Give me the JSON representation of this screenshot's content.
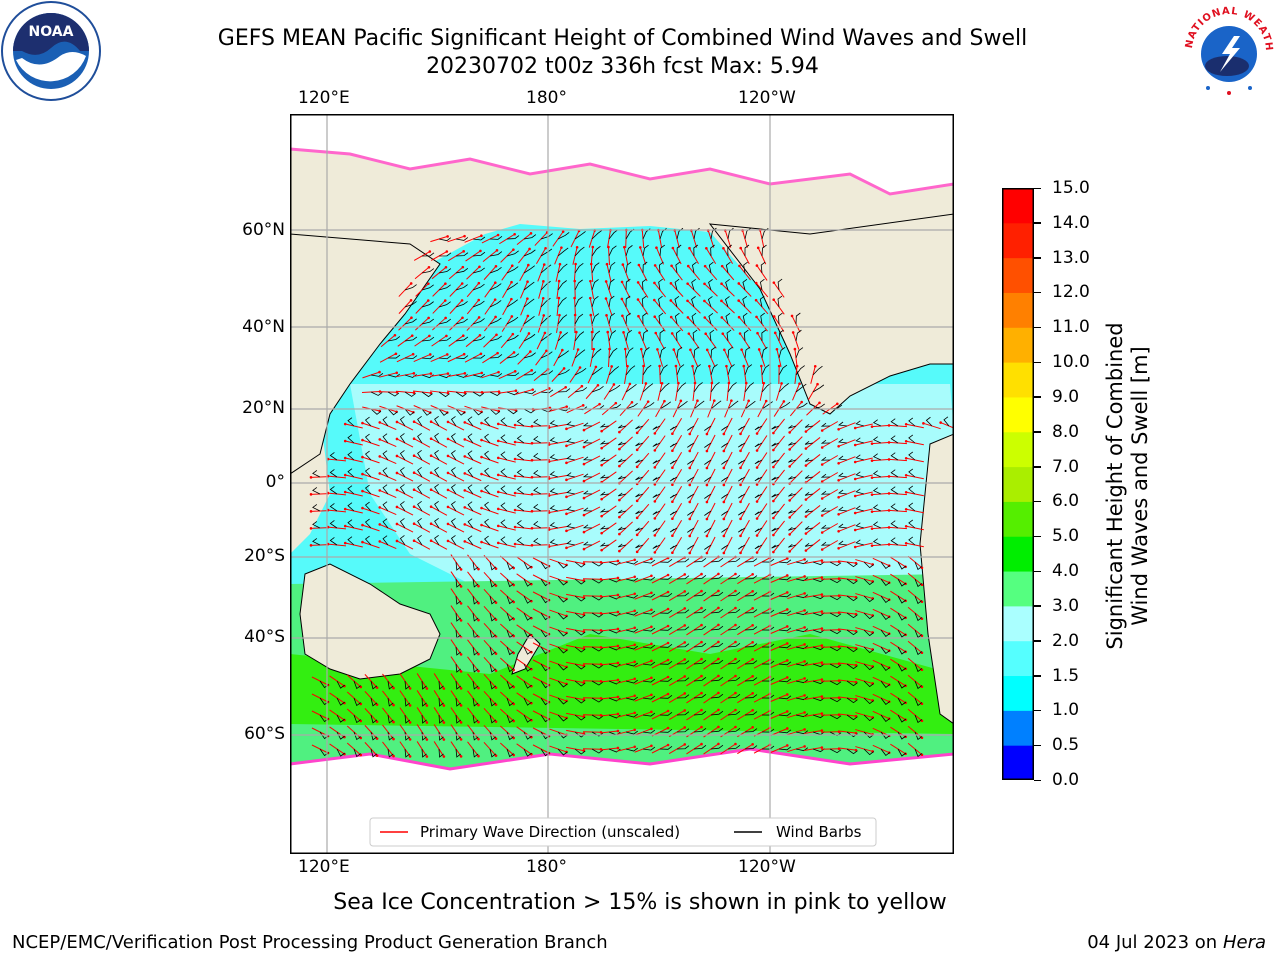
{
  "header": {
    "title_line1": "GEFS MEAN Pacific Significant Height of Combined Wind Waves and Swell",
    "title_line2": "20230702 t00z 336h fcst   Max: 5.94"
  },
  "logos": {
    "left": "noaa-logo",
    "left_text": "NOAA",
    "right": "national-weather-service-logo",
    "right_text": "NATIONAL WEATHER SERVICE"
  },
  "map": {
    "lon_labels": [
      "120°E",
      "180°",
      "120°W"
    ],
    "lat_labels": [
      "60°N",
      "40°N",
      "20°N",
      "0°",
      "20°S",
      "40°S",
      "60°S"
    ],
    "legend": {
      "wave_direction": "Primary Wave Direction (unscaled)",
      "wind_barbs": "Wind Barbs"
    },
    "colors": {
      "land": "#efebd9",
      "ocean_low": "#56fafa",
      "ocean_mid": "#a8fcfc",
      "ocean_high": "#50f080",
      "ocean_peak": "#33ee11",
      "wave_arrow": "#ff0000",
      "barb": "#000000"
    }
  },
  "colorbar": {
    "label_line1": "Significant Height of Combined",
    "label_line2": "Wind Waves and Swell [m]",
    "ticks": [
      "0.0",
      "0.5",
      "1.0",
      "1.5",
      "2.0",
      "3.0",
      "4.0",
      "5.0",
      "6.0",
      "7.0",
      "8.0",
      "9.0",
      "10.0",
      "11.0",
      "12.0",
      "13.0",
      "14.0",
      "15.0"
    ],
    "colors": [
      "#0000ff",
      "#0080ff",
      "#00ffff",
      "#55ffff",
      "#aaffff",
      "#55ff80",
      "#00ee00",
      "#55ee00",
      "#aaee00",
      "#ccff00",
      "#ffff00",
      "#ffe000",
      "#ffb000",
      "#ff8000",
      "#ff5000",
      "#ff2000",
      "#ff0000"
    ]
  },
  "subtitle": "Sea Ice Concentration > 15% is shown in pink to yellow",
  "footer": {
    "left": "NCEP/EMC/Verification Post Processing Product Generation Branch",
    "right_date": "04 Jul 2023 on ",
    "right_host": "Hera"
  }
}
